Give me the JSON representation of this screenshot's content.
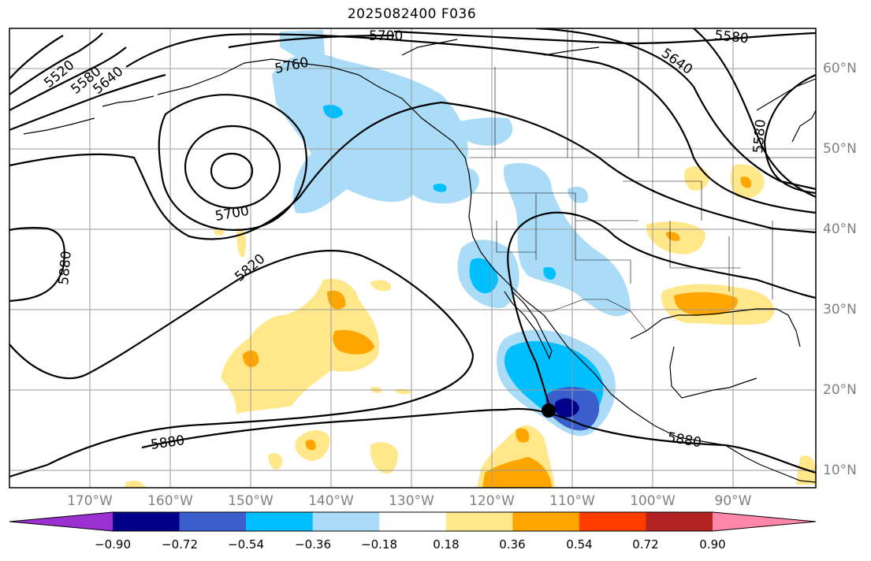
{
  "title": "2025082400 F036",
  "lat_labels": [
    "60°N",
    "50°N",
    "40°N",
    "30°N",
    "20°N",
    "10°N"
  ],
  "lon_labels": [
    "170°W",
    "160°W",
    "150°W",
    "140°W",
    "130°W",
    "120°W",
    "110°W",
    "100°W",
    "90°W"
  ],
  "contour_labels": [
    {
      "id": "c5520",
      "text": "5520"
    },
    {
      "id": "c5580a",
      "text": "5580"
    },
    {
      "id": "c5640a",
      "text": "5640"
    },
    {
      "id": "c5760",
      "text": "5760"
    },
    {
      "id": "c5700a",
      "text": "5700"
    },
    {
      "id": "c5580b",
      "text": "5580"
    },
    {
      "id": "c5640b",
      "text": "5640"
    },
    {
      "id": "c5580c",
      "text": "5580"
    },
    {
      "id": "c5700b",
      "text": "5700"
    },
    {
      "id": "c5820",
      "text": "5820"
    },
    {
      "id": "c5880a",
      "text": "5880"
    },
    {
      "id": "c5880b",
      "text": "5880"
    },
    {
      "id": "c5880c",
      "text": "5880"
    }
  ],
  "colorbar": {
    "ticks": [
      "−0.90",
      "−0.72",
      "−0.54",
      "−0.36",
      "−0.18",
      "0.18",
      "0.36",
      "0.54",
      "0.72",
      "0.90"
    ],
    "colors": [
      "#9b30d0",
      "#00008b",
      "#3a5fcd",
      "#00bfff",
      "#aadcf8",
      "#ffffff",
      "#ffe78a",
      "#ffa500",
      "#ff3c00",
      "#b22222",
      "#ff88aa"
    ]
  },
  "storm_marker": {
    "lon": -113.0,
    "lat": 17.5
  }
}
